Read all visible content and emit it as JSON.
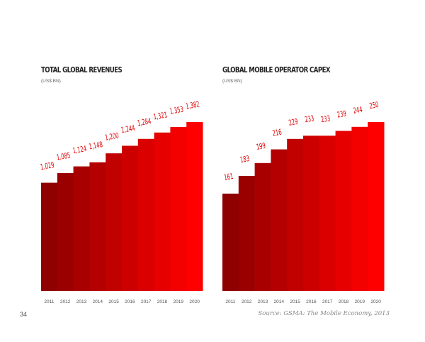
{
  "chart_data": [
    {
      "type": "bar",
      "title": "TOTAL GLOBAL REVENUES",
      "unit": "(US$ BN)",
      "categories": [
        "2011",
        "2012",
        "2013",
        "2014",
        "2015",
        "2016",
        "2017",
        "2018",
        "2019",
        "2020"
      ],
      "values": [
        1029,
        1085,
        1124,
        1148,
        1200,
        1244,
        1284,
        1321,
        1353,
        1382
      ],
      "value_labels": [
        "1,029",
        "1,085",
        "1,124",
        "1,148",
        "1,200",
        "1,244",
        "1,284",
        "1,321",
        "1,353",
        "1,382"
      ],
      "ylim": [
        400,
        1382
      ],
      "colors": [
        "#8f0000",
        "#ff0000"
      ]
    },
    {
      "type": "bar",
      "title": "GLOBAL MOBILE OPERATOR CAPEX",
      "unit": "(US$ BN)",
      "categories": [
        "2011",
        "2012",
        "2013",
        "2014",
        "2015",
        "2016",
        "2017",
        "2018",
        "2019",
        "2020"
      ],
      "values": [
        161,
        183,
        199,
        216,
        229,
        233,
        233,
        239,
        244,
        250
      ],
      "value_labels": [
        "161",
        "183",
        "199",
        "216",
        "229",
        "233",
        "233",
        "239",
        "244",
        "250"
      ],
      "ylim": [
        40,
        250
      ],
      "colors": [
        "#8f0000",
        "#ff0000"
      ]
    }
  ],
  "footer": {
    "page_number": "34",
    "source": "Source: GSMA: The Mobile Economy, 2013"
  }
}
